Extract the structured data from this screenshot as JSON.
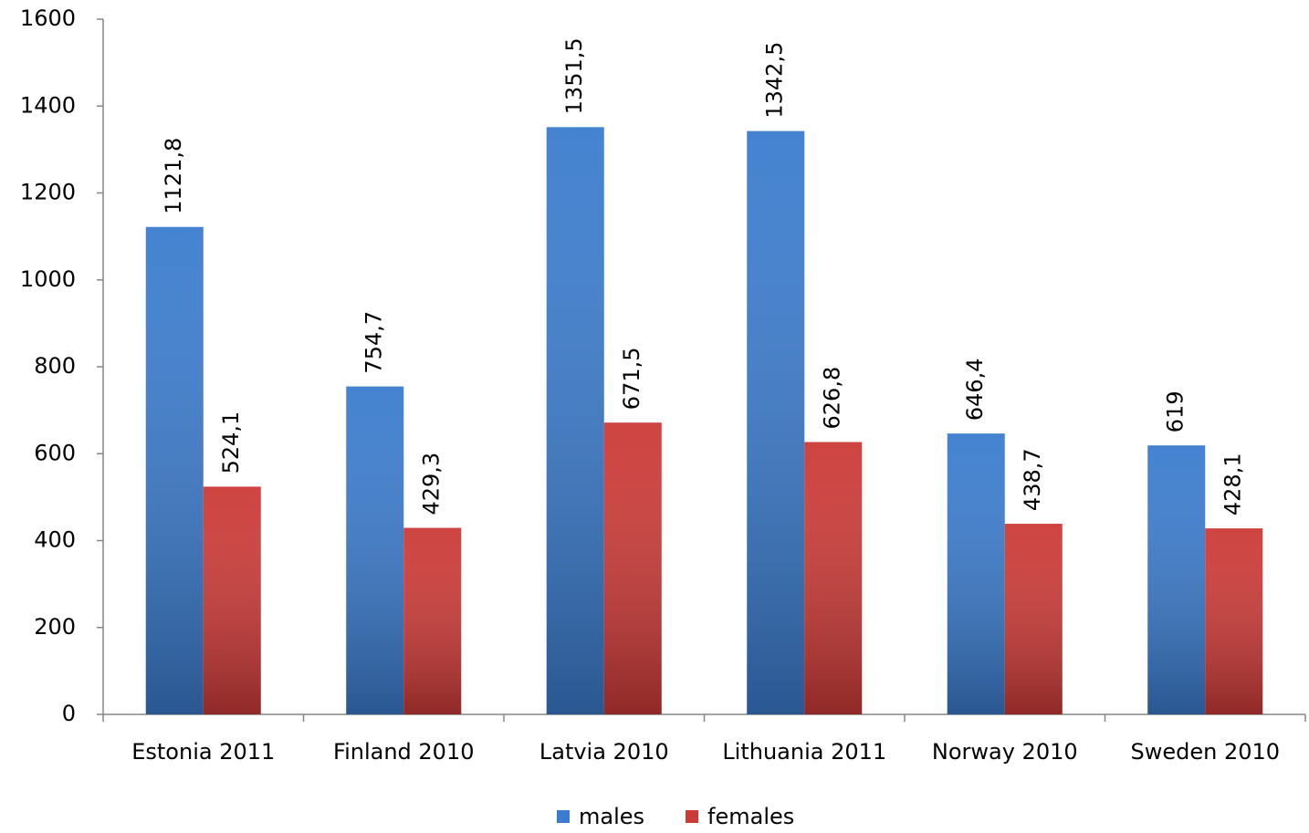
{
  "chart_data": {
    "type": "bar",
    "categories": [
      "Estonia 2011",
      "Finland 2010",
      "Latvia 2010",
      "Lithuania 2011",
      "Norway 2010",
      "Sweden 2010"
    ],
    "series": [
      {
        "name": "males",
        "color": "#3b7cce",
        "values": [
          1121.8,
          754.7,
          1351.5,
          1342.5,
          646.4,
          619
        ],
        "value_labels": [
          "1121,8",
          "754,7",
          "1351,5",
          "1342,5",
          "646,4",
          "619"
        ]
      },
      {
        "name": "females",
        "color": "#cc3a37",
        "values": [
          524.1,
          429.3,
          671.5,
          626.8,
          438.7,
          428.1
        ],
        "value_labels": [
          "524,1",
          "429,3",
          "671,5",
          "626,8",
          "438,7",
          "428,1"
        ]
      }
    ],
    "ylim": [
      0,
      1600
    ],
    "yticks": [
      0,
      200,
      400,
      600,
      800,
      1000,
      1200,
      1400,
      1600
    ],
    "grid": false,
    "legend": "bottom"
  }
}
